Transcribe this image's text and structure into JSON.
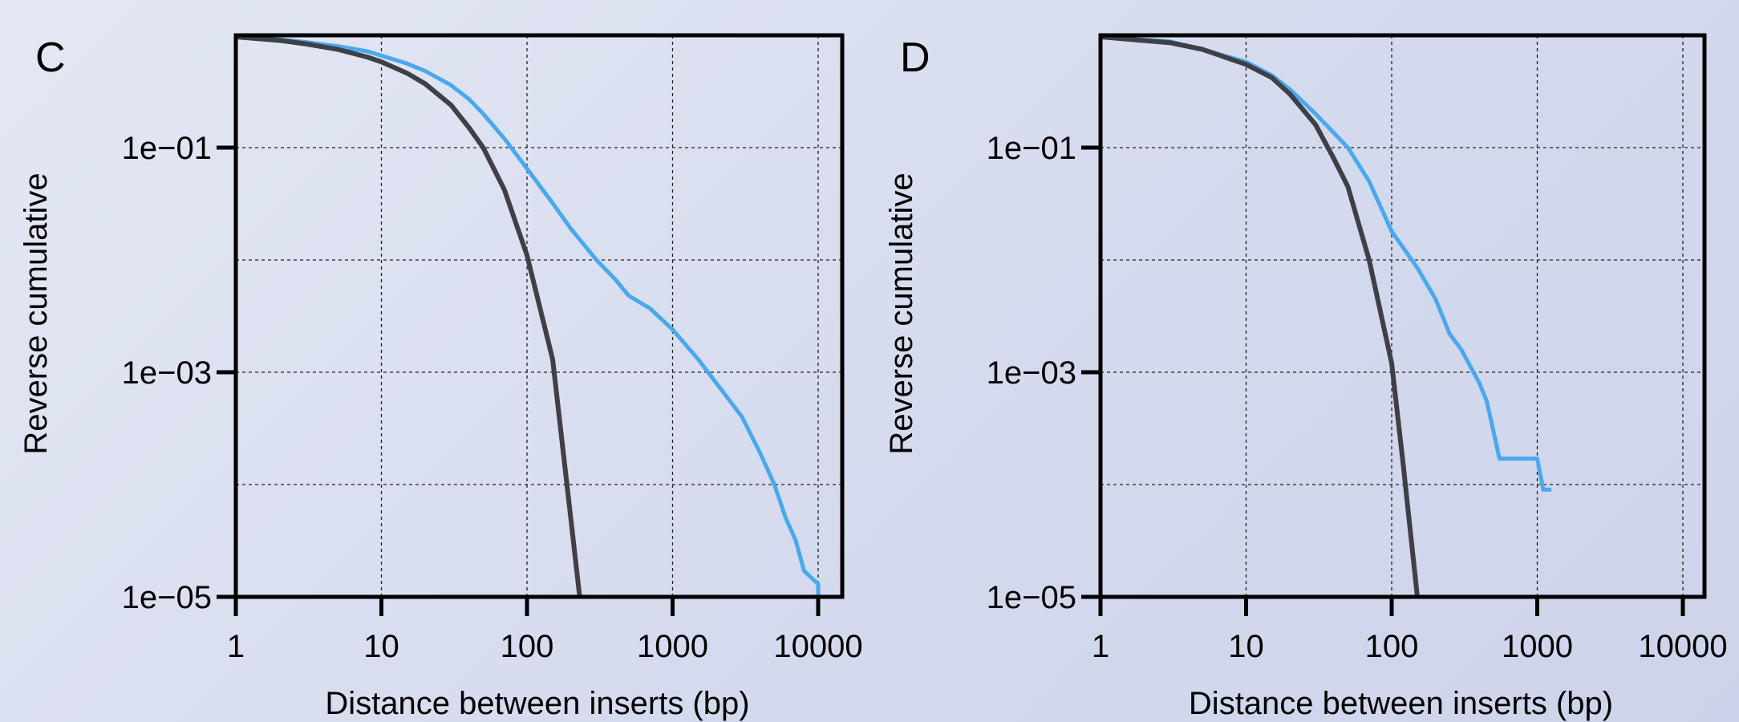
{
  "chart_data": [
    {
      "panel_label": "C",
      "type": "line",
      "xscale": "log",
      "yscale": "log",
      "xlim": [
        1,
        14000
      ],
      "ylim": [
        1e-05,
        1
      ],
      "xticks": [
        1,
        10,
        100,
        1000,
        10000
      ],
      "xtick_labels": [
        "1",
        "10",
        "100",
        "1000",
        "10000"
      ],
      "yticks": [
        0.1,
        0.001,
        1e-05
      ],
      "ytick_labels": [
        "1e−01",
        "1e−03",
        "1e−05"
      ],
      "grid": true,
      "xlabel": "Distance between inserts (bp)",
      "ylabel": "Reverse cumulative",
      "series": [
        {
          "color": "#4aa8ec",
          "points": [
            [
              1,
              0.98
            ],
            [
              2,
              0.92
            ],
            [
              3,
              0.87
            ],
            [
              5,
              0.8
            ],
            [
              8,
              0.72
            ],
            [
              10,
              0.66
            ],
            [
              15,
              0.56
            ],
            [
              20,
              0.48
            ],
            [
              30,
              0.36
            ],
            [
              40,
              0.27
            ],
            [
              50,
              0.2
            ],
            [
              70,
              0.12
            ],
            [
              100,
              0.065
            ],
            [
              150,
              0.032
            ],
            [
              200,
              0.019
            ],
            [
              300,
              0.01
            ],
            [
              400,
              0.0068
            ],
            [
              500,
              0.0048
            ],
            [
              700,
              0.0037
            ],
            [
              1000,
              0.0024
            ],
            [
              1500,
              0.0013
            ],
            [
              2000,
              0.0008
            ],
            [
              3000,
              0.0004
            ],
            [
              4000,
              0.00019
            ],
            [
              5000,
              0.0001
            ],
            [
              6000,
              5e-05
            ],
            [
              7000,
              3.2e-05
            ],
            [
              8000,
              1.7e-05
            ],
            [
              10000,
              1.3e-05
            ],
            [
              10000,
              1e-05
            ]
          ]
        },
        {
          "color": "#3e4045",
          "points": [
            [
              1,
              0.97
            ],
            [
              2,
              0.9
            ],
            [
              3,
              0.84
            ],
            [
              5,
              0.75
            ],
            [
              8,
              0.64
            ],
            [
              10,
              0.58
            ],
            [
              15,
              0.46
            ],
            [
              20,
              0.37
            ],
            [
              30,
              0.24
            ],
            [
              40,
              0.15
            ],
            [
              50,
              0.1
            ],
            [
              70,
              0.042
            ],
            [
              100,
              0.011
            ],
            [
              150,
              0.0013
            ],
            [
              200,
              5e-05
            ],
            [
              230,
              1e-05
            ]
          ]
        }
      ]
    },
    {
      "panel_label": "D",
      "type": "line",
      "xscale": "log",
      "yscale": "log",
      "xlim": [
        1,
        14000
      ],
      "ylim": [
        1e-05,
        1
      ],
      "xticks": [
        1,
        10,
        100,
        1000,
        10000
      ],
      "xtick_labels": [
        "1",
        "10",
        "100",
        "1000",
        "10000"
      ],
      "yticks": [
        0.1,
        0.001,
        1e-05
      ],
      "ytick_labels": [
        "1e−01",
        "1e−03",
        "1e−05"
      ],
      "grid": true,
      "xlabel": "Distance between inserts (bp)",
      "ylabel": "Reverse cumulative",
      "series": [
        {
          "color": "#4aa8ec",
          "points": [
            [
              1,
              0.97
            ],
            [
              3,
              0.88
            ],
            [
              5,
              0.75
            ],
            [
              10,
              0.58
            ],
            [
              15,
              0.44
            ],
            [
              20,
              0.33
            ],
            [
              30,
              0.2
            ],
            [
              50,
              0.1
            ],
            [
              70,
              0.05
            ],
            [
              100,
              0.018
            ],
            [
              150,
              0.0085
            ],
            [
              200,
              0.0045
            ],
            [
              250,
              0.0022
            ],
            [
              300,
              0.0016
            ],
            [
              400,
              0.0008
            ],
            [
              450,
              0.00055
            ],
            [
              550,
              0.00017
            ],
            [
              1000,
              0.00017
            ],
            [
              1100,
              9e-05
            ],
            [
              1200,
              9e-05
            ],
            [
              1250,
              9e-05
            ]
          ]
        },
        {
          "color": "#3e4045",
          "points": [
            [
              1,
              0.97
            ],
            [
              3,
              0.86
            ],
            [
              5,
              0.75
            ],
            [
              10,
              0.55
            ],
            [
              15,
              0.42
            ],
            [
              20,
              0.3
            ],
            [
              30,
              0.16
            ],
            [
              40,
              0.08
            ],
            [
              50,
              0.045
            ],
            [
              70,
              0.01
            ],
            [
              100,
              0.0012
            ],
            [
              120,
              0.00015
            ],
            [
              150,
              1e-05
            ]
          ]
        }
      ]
    }
  ]
}
